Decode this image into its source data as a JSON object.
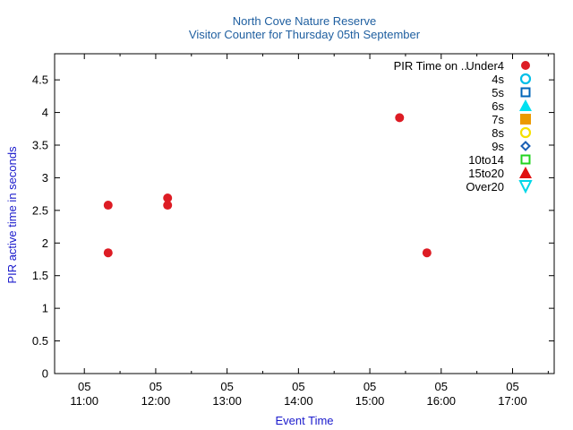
{
  "chart_data": {
    "type": "scatter",
    "title": "North Cove Nature Reserve",
    "subtitle": "Visitor Counter for Thursday 05th September",
    "xlabel": "Event Time",
    "ylabel": "PIR active time in seconds",
    "legend_heading": "PIR Time on ..",
    "legend_position": "top-right",
    "grid": false,
    "xlim": [
      "10:35",
      "17:35"
    ],
    "ylim": [
      0,
      4.9
    ],
    "x_ticks": [
      {
        "time": "11:00",
        "day": "05",
        "label": "11:00"
      },
      {
        "time": "12:00",
        "day": "05",
        "label": "12:00"
      },
      {
        "time": "13:00",
        "day": "05",
        "label": "13:00"
      },
      {
        "time": "14:00",
        "day": "05",
        "label": "14:00"
      },
      {
        "time": "15:00",
        "day": "05",
        "label": "15:00"
      },
      {
        "time": "16:00",
        "day": "05",
        "label": "16:00"
      },
      {
        "time": "17:00",
        "day": "05",
        "label": "17:00"
      }
    ],
    "y_ticks": [
      {
        "value": 0,
        "label": "0"
      },
      {
        "value": 0.5,
        "label": "0.5"
      },
      {
        "value": 1,
        "label": "1"
      },
      {
        "value": 1.5,
        "label": "1.5"
      },
      {
        "value": 2,
        "label": "2"
      },
      {
        "value": 2.5,
        "label": "2.5"
      },
      {
        "value": 3,
        "label": "3"
      },
      {
        "value": 3.5,
        "label": "3.5"
      },
      {
        "value": 4,
        "label": "4"
      },
      {
        "value": 4.5,
        "label": "4.5"
      }
    ],
    "series": [
      {
        "name": "Under4",
        "marker": "circle-filled",
        "color": "#dd1c24",
        "points": [
          {
            "x": "11:20",
            "y": 2.58
          },
          {
            "x": "11:20",
            "y": 1.85
          },
          {
            "x": "12:10",
            "y": 2.69
          },
          {
            "x": "12:10",
            "y": 2.58
          },
          {
            "x": "15:25",
            "y": 3.92
          },
          {
            "x": "15:48",
            "y": 1.85
          }
        ]
      },
      {
        "name": "4s",
        "marker": "circle-open",
        "color": "#00bfe8",
        "points": []
      },
      {
        "name": "5s",
        "marker": "square-open",
        "color": "#0065b8",
        "points": []
      },
      {
        "name": "6s",
        "marker": "triangle-up-filled",
        "color": "#00e0f0",
        "points": []
      },
      {
        "name": "7s",
        "marker": "square-filled",
        "color": "#eb9a00",
        "points": []
      },
      {
        "name": "8s",
        "marker": "circle-open",
        "color": "#f5e000",
        "points": []
      },
      {
        "name": "9s",
        "marker": "diamond-open",
        "color": "#1a5fb4",
        "points": []
      },
      {
        "name": "10to14",
        "marker": "square-open",
        "color": "#22d31f",
        "points": []
      },
      {
        "name": "15to20",
        "marker": "triangle-up-filled",
        "color": "#e01010",
        "points": []
      },
      {
        "name": "Over20",
        "marker": "triangle-down-open",
        "color": "#00d7e8",
        "points": []
      }
    ]
  }
}
